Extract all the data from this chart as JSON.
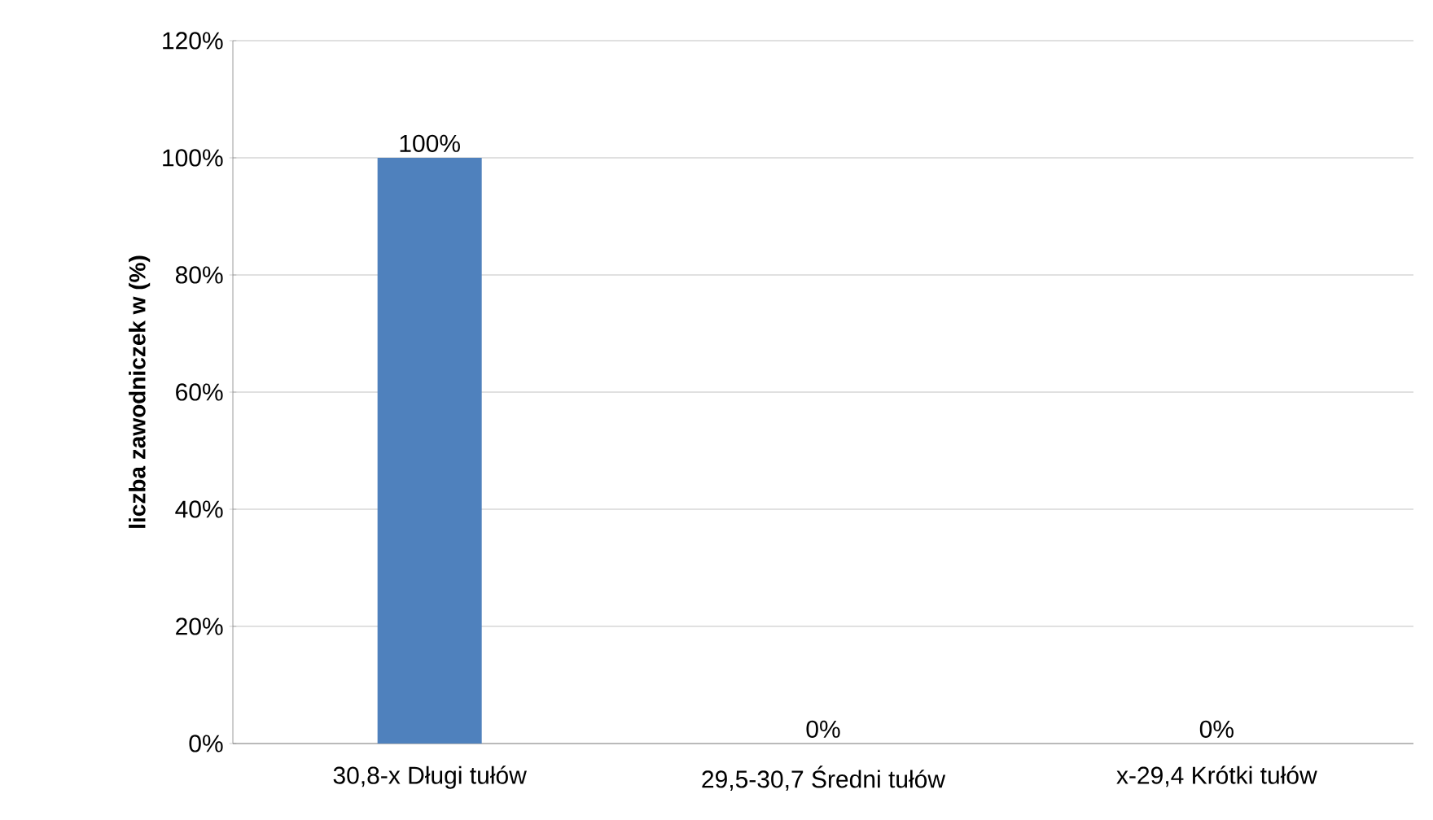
{
  "chart_data": {
    "type": "bar",
    "ylabel": "liczba zawodniczek w (%)",
    "categories": [
      "30,8-x Długi tułów",
      "29,5-30,7 Średni tułów",
      "x-29,4 Krótki tułów"
    ],
    "values": [
      100,
      0,
      0
    ],
    "value_labels": [
      "100%",
      "0%",
      "0%"
    ],
    "color": "#4f81bd",
    "ylim": [
      0,
      120
    ],
    "yticks": [
      {
        "value": 0,
        "label": "0%"
      },
      {
        "value": 20,
        "label": "20%"
      },
      {
        "value": 40,
        "label": "40%"
      },
      {
        "value": 60,
        "label": "60%"
      },
      {
        "value": 80,
        "label": "80%"
      },
      {
        "value": 100,
        "label": "100%"
      },
      {
        "value": 120,
        "label": "120%"
      }
    ],
    "grid": "y"
  }
}
